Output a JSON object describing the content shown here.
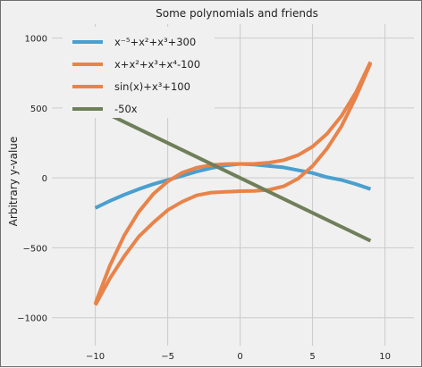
{
  "chart_data": {
    "type": "line",
    "title": "Some polynomials and friends",
    "xlabel": "",
    "ylabel": "Arbitrary y-value",
    "xlim": [
      -13,
      12
    ],
    "ylim": [
      -1200,
      1100
    ],
    "x_ticks": [
      -10,
      -5,
      0,
      5,
      10
    ],
    "y_ticks": [
      -1000,
      -500,
      0,
      500,
      1000
    ],
    "x_tick_labels": [
      "−10",
      "−5",
      "0",
      "5",
      "10"
    ],
    "y_tick_labels": [
      "−1000",
      "−500",
      "0",
      "500",
      "1000"
    ],
    "grid": true,
    "legend_position": "top-left",
    "x_range": [
      -10,
      9
    ],
    "series": [
      {
        "name": "x⁻⁵+x²+x³+300",
        "color": "#4a9fcf",
        "x": [
          -10,
          -9,
          -8,
          -7,
          -6,
          -5,
          -4,
          -3,
          -2,
          -1,
          0,
          1,
          2,
          3,
          4,
          5,
          6,
          7,
          8,
          9
        ],
        "y": [
          -215,
          -165,
          -120,
          -80,
          -45,
          -15,
          15,
          45,
          70,
          90,
          100,
          95,
          85,
          75,
          55,
          35,
          5,
          -15,
          -45,
          -80
        ]
      },
      {
        "name": "x+x²+x³+x⁴-100",
        "color": "#e8834a",
        "x": [
          -10,
          -9,
          -8,
          -7,
          -6,
          -5,
          -4,
          -3,
          -2,
          -1,
          0,
          1,
          2,
          3,
          4,
          5,
          6,
          7,
          8,
          9
        ],
        "y": [
          -910,
          -720,
          -560,
          -420,
          -320,
          -230,
          -170,
          -125,
          -105,
          -100,
          -95,
          -93,
          -85,
          -60,
          -5,
          85,
          210,
          370,
          580,
          820
        ]
      },
      {
        "name": "sin(x)+x³+100",
        "color": "#e8834a",
        "x": [
          -10,
          -9,
          -8,
          -7,
          -6,
          -5,
          -4,
          -3,
          -2,
          -1,
          0,
          1,
          2,
          3,
          4,
          5,
          6,
          7,
          8,
          9
        ],
        "y": [
          -900,
          -629,
          -411,
          -243,
          -116,
          -25,
          37,
          73,
          92,
          99,
          100,
          101,
          109,
          127,
          163,
          224,
          316,
          444,
          613,
          829
        ]
      },
      {
        "name": "-50x",
        "color": "#6e7f5a",
        "x": [
          -10,
          9
        ],
        "y": [
          500,
          -450
        ]
      }
    ]
  }
}
